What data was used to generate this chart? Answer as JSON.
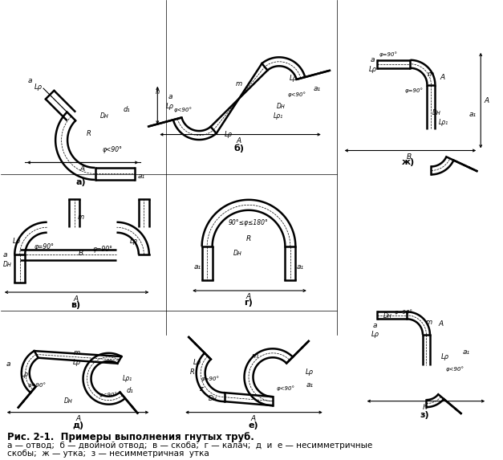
{
  "bg_color": "#ffffff",
  "line_color": "#000000",
  "title": "Рис. 2-1.  Примеры выполнения гнутых труб.",
  "caption2": "а — отвод;  б — двойной отвод;  в — скоба;  г — калач;  д  и  е — несимметричные",
  "caption3": "скобы;  ж — утка;  з — несимметричная  утка"
}
